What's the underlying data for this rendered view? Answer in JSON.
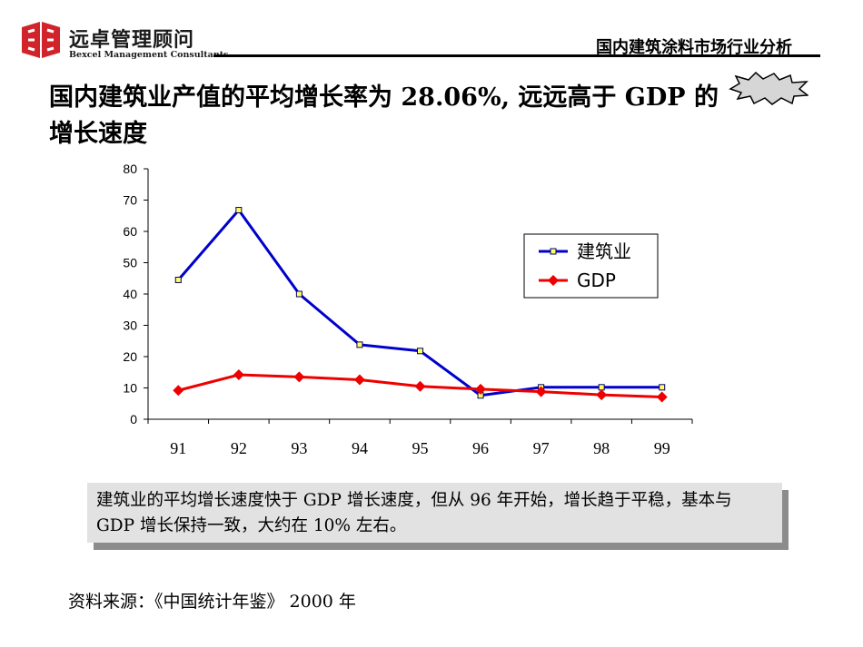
{
  "logo": {
    "name_cn": "远卓管理顾问",
    "name_en": "Bexcel Management Consultants",
    "color": "#d0232a"
  },
  "header": {
    "title": "国内建筑涂料市场行业分析"
  },
  "slide": {
    "title": "国内建筑业产值的平均增长率为 28.06%, 远远高于 GDP 的增长速度"
  },
  "chart_data": {
    "type": "line",
    "categories": [
      "91",
      "92",
      "93",
      "94",
      "95",
      "96",
      "97",
      "98",
      "99"
    ],
    "series": [
      {
        "name": "建筑业",
        "color": "#0000cc",
        "marker": "square",
        "values": [
          44.5,
          66.8,
          40.0,
          23.8,
          21.8,
          7.6,
          10.2,
          10.2,
          10.2
        ]
      },
      {
        "name": "GDP",
        "color": "#ee0000",
        "marker": "diamond",
        "values": [
          9.2,
          14.2,
          13.5,
          12.6,
          10.5,
          9.6,
          8.8,
          7.8,
          7.1
        ]
      }
    ],
    "yticks": [
      "0",
      "10",
      "20",
      "30",
      "40",
      "50",
      "60",
      "70",
      "80"
    ],
    "ylim": [
      0,
      80
    ],
    "grid": false,
    "legend_position": "right"
  },
  "note": {
    "text": "建筑业的平均增长速度快于 GDP 增长速度，但从 96 年开始，增长趋于平稳，基本与 GDP 增长保持一致，大约在 10% 左右。"
  },
  "source": {
    "text": "资料来源：《中国统计年鉴》 2000 年"
  }
}
